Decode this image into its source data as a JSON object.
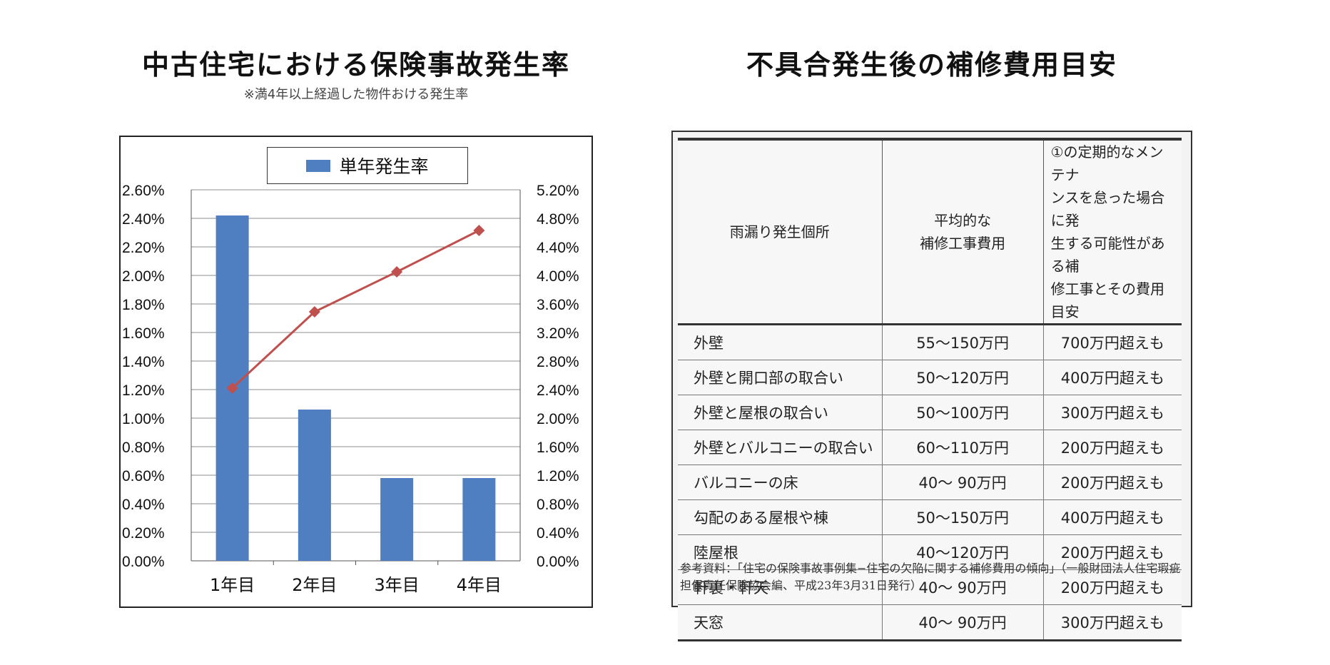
{
  "left_title": "中古住宅における保険事故発生率",
  "left_subtitle": "※満4年以上経過した物件おける発生率",
  "right_title": "不具合発生後の補修費用目安",
  "chart_data": {
    "type": "bar",
    "categories": [
      "1年目",
      "2年目",
      "3年目",
      "4年目"
    ],
    "series": [
      {
        "name": "単年発生率",
        "kind": "bar",
        "axis": "left",
        "values": [
          2.42,
          1.06,
          0.58,
          0.58
        ],
        "color": "#4f7fc0"
      },
      {
        "kind": "line",
        "axis": "right",
        "values": [
          2.42,
          3.49,
          4.05,
          4.63
        ],
        "color": "#c0504d"
      }
    ],
    "y_left": {
      "range": [
        0,
        2.6
      ],
      "ticks": [
        "0.00%",
        "0.20%",
        "0.40%",
        "0.60%",
        "0.80%",
        "1.00%",
        "1.20%",
        "1.40%",
        "1.60%",
        "1.80%",
        "2.00%",
        "2.20%",
        "2.40%",
        "2.60%"
      ]
    },
    "y_right": {
      "range": [
        0,
        5.2
      ],
      "ticks": [
        "0.00%",
        "0.40%",
        "0.80%",
        "1.20%",
        "1.60%",
        "2.00%",
        "2.40%",
        "2.80%",
        "3.20%",
        "3.60%",
        "4.00%",
        "4.40%",
        "4.80%",
        "5.20%"
      ]
    },
    "grid": true,
    "legend": "top-center"
  },
  "repair_table": {
    "headers": [
      "雨漏り発生個所",
      "平均的な\n補修工事費用",
      "①の定期的なメンテナ\nンスを怠った場合に発\n生する可能性がある補\n修工事とその費用目安"
    ],
    "rows": [
      [
        "外壁",
        "55〜150万円",
        "700万円超えも"
      ],
      [
        "外壁と開口部の取合い",
        "50〜120万円",
        "400万円超えも"
      ],
      [
        "外壁と屋根の取合い",
        "50〜100万円",
        "300万円超えも"
      ],
      [
        "外壁とバルコニーの取合い",
        "60〜110万円",
        "200万円超えも"
      ],
      [
        "バルコニーの床",
        "40〜 90万円",
        "200万円超えも"
      ],
      [
        "勾配のある屋根や棟",
        "50〜150万円",
        "400万円超えも"
      ],
      [
        "陸屋根",
        "40〜120万円",
        "200万円超えも"
      ],
      [
        "軒裏・軒天",
        "40〜 90万円",
        "200万円超えも"
      ],
      [
        "天窓",
        "40〜 90万円",
        "300万円超えも"
      ]
    ],
    "note": "参考資料：「住宅の保険事故事例集−住宅の欠陥に関する補修費用の傾向」（一般財団法人住宅瑕疵担保責任保険協会編、平成23年3月31日発行）"
  }
}
